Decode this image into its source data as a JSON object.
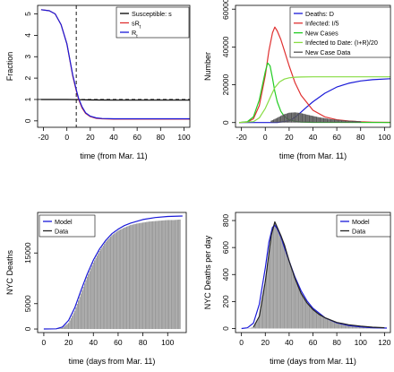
{
  "chart_data": [
    {
      "id": "panel-a",
      "type": "line",
      "xlabel": "time (from Mar. 11)",
      "ylabel": "Fraction",
      "xlim": [
        -25,
        105
      ],
      "ylim": [
        -0.3,
        5.4
      ],
      "xticks": [
        -20,
        0,
        20,
        40,
        60,
        80,
        100
      ],
      "yticks": [
        0,
        1,
        2,
        3,
        4,
        5
      ],
      "legend_position": "top-right",
      "legend": [
        {
          "label": "Susceptible: s",
          "color": "#000000"
        },
        {
          "label": "sR_t",
          "color": "#e03030"
        },
        {
          "label": "R_t",
          "color": "#1a1ad8"
        }
      ],
      "vline": {
        "x": 8,
        "style": "dashed"
      },
      "hline": {
        "y": 1.0,
        "style": "dashed"
      },
      "series": [
        {
          "color": "#000000",
          "x": [
            -22,
            0,
            10,
            20,
            40,
            60,
            80,
            105
          ],
          "y": [
            1.0,
            1.0,
            0.99,
            0.98,
            0.97,
            0.97,
            0.97,
            0.97
          ]
        },
        {
          "color": "#e03030",
          "x": [
            -22,
            -15,
            -10,
            -5,
            0,
            5,
            8,
            10,
            13,
            16,
            20,
            25,
            30,
            40,
            60,
            105
          ],
          "y": [
            5.2,
            5.15,
            5.0,
            4.5,
            3.6,
            2.1,
            1.4,
            1.0,
            0.6,
            0.35,
            0.2,
            0.12,
            0.1,
            0.08,
            0.08,
            0.08
          ]
        },
        {
          "color": "#1a1ad8",
          "x": [
            -22,
            -15,
            -10,
            -5,
            0,
            5,
            8,
            10,
            13,
            16,
            20,
            25,
            30,
            40,
            60,
            105
          ],
          "y": [
            5.2,
            5.15,
            5.0,
            4.5,
            3.6,
            2.15,
            1.45,
            1.05,
            0.65,
            0.38,
            0.22,
            0.14,
            0.11,
            0.1,
            0.1,
            0.1
          ]
        }
      ]
    },
    {
      "id": "panel-b",
      "type": "line",
      "xlabel": "time (from Mar. 11)",
      "ylabel": "Number",
      "xlim": [
        -25,
        105
      ],
      "ylim": [
        -2500,
        62000
      ],
      "xticks": [
        -20,
        0,
        20,
        40,
        60,
        80,
        100
      ],
      "yticks": [
        0,
        20000,
        40000,
        60000
      ],
      "legend_position": "top-right",
      "legend": [
        {
          "label": "Deaths: D",
          "color": "#1a1ad8"
        },
        {
          "label": "Infected: I/5",
          "color": "#e03030"
        },
        {
          "label": "New Cases",
          "color": "#22cc22"
        },
        {
          "label": "Infected to Date: (I+R)/20",
          "color": "#88dd44"
        },
        {
          "label": "New Case Data",
          "color": "#555555"
        }
      ],
      "series": [
        {
          "name": "Deaths: D",
          "color": "#1a1ad8",
          "x": [
            -22,
            10,
            20,
            25,
            30,
            35,
            40,
            50,
            60,
            70,
            80,
            90,
            105
          ],
          "y": [
            0,
            50,
            900,
            2800,
            5500,
            8300,
            11000,
            15500,
            18800,
            20800,
            22000,
            22700,
            23200
          ]
        },
        {
          "name": "Infected: I/5",
          "color": "#e03030",
          "x": [
            -22,
            -15,
            -10,
            -5,
            0,
            3,
            6,
            8,
            10,
            13,
            16,
            20,
            25,
            30,
            40,
            50,
            60,
            70,
            80,
            90,
            105
          ],
          "y": [
            0,
            300,
            2000,
            9000,
            25000,
            38000,
            47500,
            50500,
            48500,
            44000,
            38000,
            30000,
            21000,
            14500,
            6500,
            3000,
            1500,
            800,
            400,
            200,
            100
          ]
        },
        {
          "name": "New Cases",
          "color": "#22cc22",
          "x": [
            -22,
            -15,
            -10,
            -5,
            0,
            2,
            4,
            6,
            8,
            10,
            13,
            16,
            20,
            25,
            30,
            40,
            105
          ],
          "y": [
            0,
            500,
            3000,
            12000,
            27000,
            31500,
            30000,
            23500,
            16500,
            11000,
            6000,
            3200,
            1500,
            700,
            300,
            100,
            0
          ]
        },
        {
          "name": "Infected to Date: (I+R)/20",
          "color": "#88dd44",
          "x": [
            -22,
            -10,
            -5,
            0,
            5,
            8,
            12,
            16,
            20,
            25,
            30,
            40,
            60,
            105
          ],
          "y": [
            0,
            500,
            2500,
            7500,
            14500,
            18500,
            21500,
            23000,
            23700,
            24000,
            24100,
            24200,
            24200,
            24200
          ]
        },
        {
          "name": "New Case Data",
          "type": "bar",
          "color": "#555555",
          "x": [
            5,
            10,
            15,
            20,
            25,
            30,
            35,
            40,
            45,
            50,
            55,
            60,
            65,
            70,
            75,
            80
          ],
          "y": [
            1000,
            2500,
            4200,
            5200,
            5400,
            5000,
            4200,
            3500,
            2800,
            2300,
            1800,
            1500,
            1200,
            1000,
            900,
            700
          ]
        }
      ]
    },
    {
      "id": "panel-c",
      "type": "bar",
      "xlabel": "time (days from Mar. 11)",
      "ylabel": "NYC Deaths",
      "xlim": [
        -5,
        115
      ],
      "ylim": [
        -700,
        23000
      ],
      "xticks": [
        0,
        20,
        40,
        60,
        80,
        100
      ],
      "yticks": [
        0,
        5000,
        15000
      ],
      "legend_position": "top-left",
      "legend": [
        {
          "label": "Model",
          "color": "#1a1ad8"
        },
        {
          "label": "Data",
          "color": "#222222"
        }
      ],
      "bars": {
        "color": "#9a9a9a",
        "x": [
          10,
          15,
          20,
          25,
          30,
          35,
          40,
          45,
          50,
          55,
          60,
          65,
          70,
          75,
          80,
          85,
          90,
          95,
          100,
          105,
          110
        ],
        "y": [
          0,
          250,
          1200,
          3600,
          7000,
          10300,
          13100,
          15400,
          17200,
          18500,
          19400,
          20000,
          20500,
          20800,
          21000,
          21200,
          21300,
          21400,
          21500,
          21500,
          21600
        ]
      },
      "series": [
        {
          "name": "Model",
          "color": "#1a1ad8",
          "x": [
            0,
            10,
            15,
            20,
            25,
            30,
            35,
            40,
            45,
            50,
            55,
            60,
            65,
            70,
            80,
            90,
            100,
            112
          ],
          "y": [
            0,
            40,
            400,
            1700,
            4200,
            7600,
            10800,
            13600,
            15800,
            17500,
            18800,
            19700,
            20400,
            20900,
            21600,
            22000,
            22200,
            22300
          ]
        }
      ]
    },
    {
      "id": "panel-d",
      "type": "bar",
      "xlabel": "time (days from Mar. 11)",
      "ylabel": "NYC Deaths per day",
      "xlim": [
        -5,
        125
      ],
      "ylim": [
        -30,
        860
      ],
      "xticks": [
        0,
        20,
        40,
        60,
        80,
        100,
        120
      ],
      "yticks": [
        0,
        200,
        400,
        600,
        800
      ],
      "legend_position": "top-right",
      "legend": [
        {
          "label": "Model",
          "color": "#1a1ad8"
        },
        {
          "label": "Data",
          "color": "#222222"
        }
      ],
      "bars": {
        "color": "#9a9a9a",
        "x": [
          5,
          10,
          15,
          20,
          25,
          28,
          30,
          33,
          36,
          40,
          45,
          50,
          55,
          60,
          65,
          70,
          75,
          80,
          85,
          90,
          95,
          100,
          105,
          110,
          115,
          120
        ],
        "y": [
          0,
          10,
          90,
          350,
          690,
          790,
          750,
          690,
          620,
          500,
          370,
          260,
          190,
          140,
          105,
          80,
          60,
          45,
          35,
          28,
          22,
          18,
          14,
          10,
          8,
          6
        ]
      },
      "series": [
        {
          "name": "Model",
          "color": "#1a1ad8",
          "x": [
            0,
            5,
            10,
            15,
            20,
            23,
            26,
            28,
            30,
            33,
            36,
            40,
            45,
            50,
            55,
            60,
            70,
            80,
            90,
            100,
            110,
            122
          ],
          "y": [
            0,
            5,
            40,
            180,
            450,
            640,
            750,
            765,
            740,
            680,
            600,
            500,
            380,
            280,
            205,
            150,
            80,
            42,
            22,
            12,
            6,
            3
          ]
        },
        {
          "name": "Data",
          "color": "#222222",
          "x": [
            10,
            15,
            20,
            25,
            28,
            30,
            33,
            36,
            40,
            45,
            50,
            55,
            60,
            65,
            70,
            80,
            90,
            100,
            110,
            120
          ],
          "y": [
            10,
            90,
            350,
            690,
            790,
            750,
            690,
            620,
            500,
            370,
            260,
            190,
            140,
            105,
            80,
            45,
            28,
            18,
            10,
            6
          ]
        }
      ]
    }
  ]
}
